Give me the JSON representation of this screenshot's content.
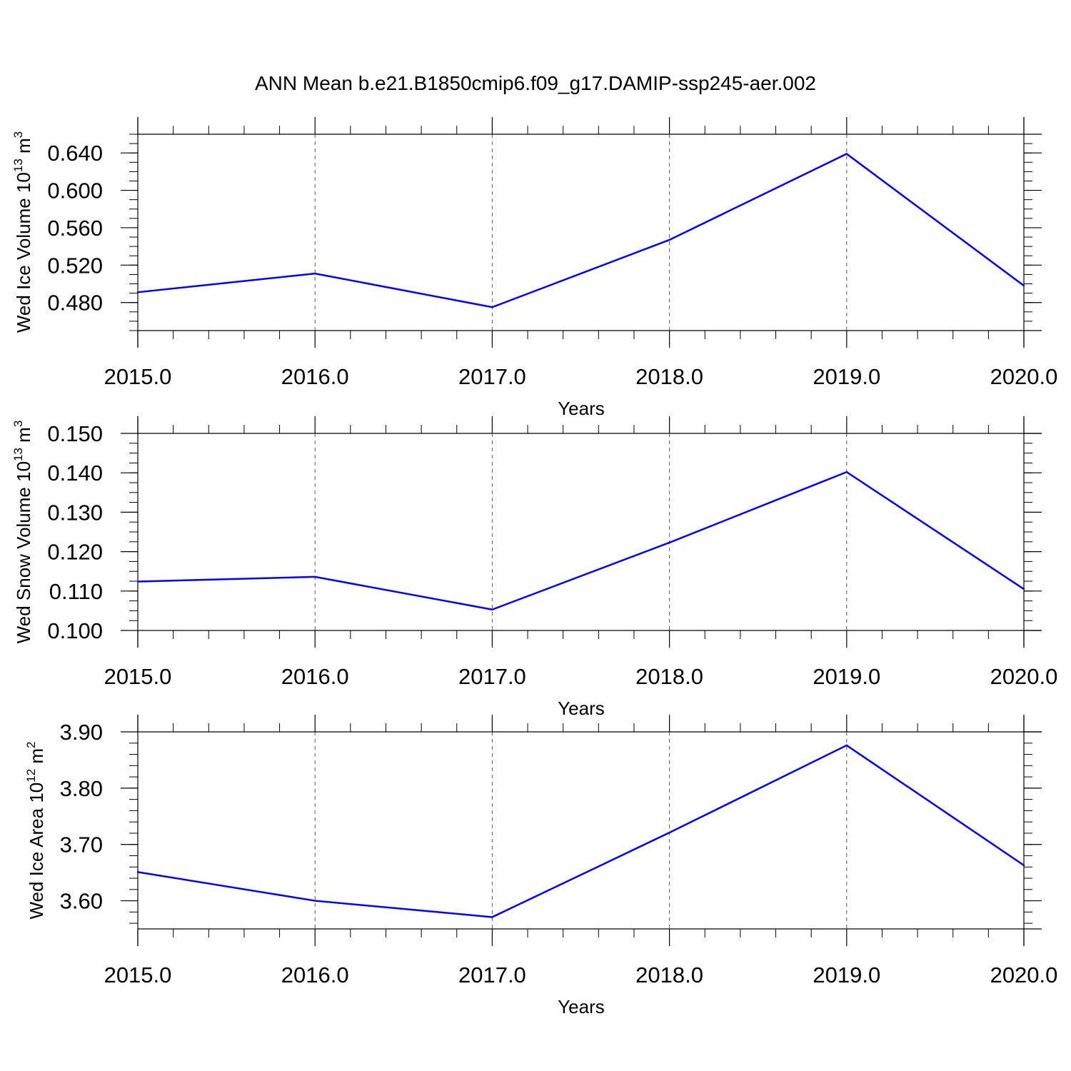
{
  "title": "ANN Mean b.e21.B1850cmip6.f09_g17.DAMIP-ssp245-aer.002",
  "line_color": "#0000ff",
  "chart_data": [
    {
      "type": "line",
      "ylabel_main": "Wed Ice Volume 10",
      "ylabel_sup": "13",
      "ylabel_unit": "m",
      "ylabel_unit_sup": "3",
      "xlabel": "Years",
      "x": [
        2015,
        2016,
        2017,
        2018,
        2019,
        2020
      ],
      "values": [
        0.491,
        0.511,
        0.475,
        0.547,
        0.639,
        0.498
      ],
      "xlim": [
        2015,
        2020
      ],
      "ylim": [
        0.45,
        0.66
      ],
      "yticks": [
        "0.480",
        "0.520",
        "0.560",
        "0.600",
        "0.640"
      ],
      "xticks": [
        "2015.0",
        "2016.0",
        "2017.0",
        "2018.0",
        "2019.0",
        "2020.0"
      ],
      "grid": "vertical dashed"
    },
    {
      "type": "line",
      "ylabel_main": "Wed Snow Volume 10",
      "ylabel_sup": "13",
      "ylabel_unit": "m",
      "ylabel_unit_sup": "3",
      "xlabel": "Years",
      "x": [
        2015,
        2016,
        2017,
        2018,
        2019,
        2020
      ],
      "values": [
        0.1124,
        0.1136,
        0.1053,
        0.1223,
        0.1402,
        0.1105
      ],
      "xlim": [
        2015,
        2020
      ],
      "ylim": [
        0.1,
        0.15
      ],
      "yticks": [
        "0.100",
        "0.110",
        "0.120",
        "0.130",
        "0.140",
        "0.150"
      ],
      "xticks": [
        "2015.0",
        "2016.0",
        "2017.0",
        "2018.0",
        "2019.0",
        "2020.0"
      ],
      "grid": "vertical dashed"
    },
    {
      "type": "line",
      "ylabel_main": "Wed Ice Area 10",
      "ylabel_sup": "12",
      "ylabel_unit": "m",
      "ylabel_unit_sup": "2",
      "xlabel": "Years",
      "x": [
        2015,
        2016,
        2017,
        2018,
        2019,
        2020
      ],
      "values": [
        3.651,
        3.6,
        3.571,
        3.721,
        3.876,
        3.663
      ],
      "xlim": [
        2015,
        2020
      ],
      "ylim": [
        3.55,
        3.9
      ],
      "yticks": [
        "3.60",
        "3.70",
        "3.80",
        "3.90"
      ],
      "xticks": [
        "2015.0",
        "2016.0",
        "2017.0",
        "2018.0",
        "2019.0",
        "2020.0"
      ],
      "grid": "vertical dashed"
    }
  ]
}
